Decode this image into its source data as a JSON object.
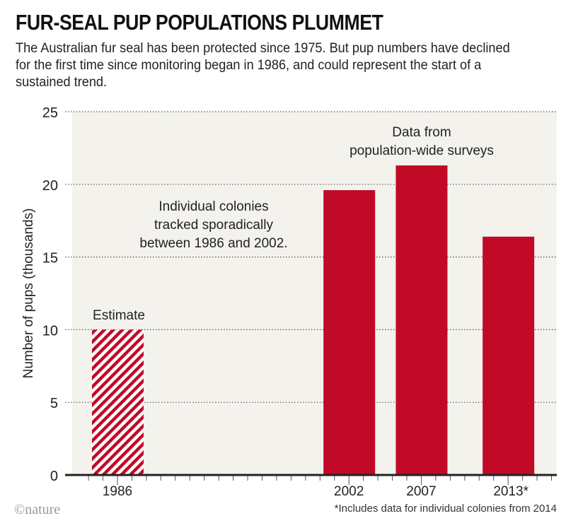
{
  "chart_data": {
    "type": "bar",
    "title": "FUR-SEAL PUP POPULATIONS PLUMMET",
    "subtitle": "The Australian fur seal has been protected since 1975. But pup numbers have declined for the first time since monitoring began in 1986, and could represent the start of a sustained trend.",
    "ylabel": "Number of pups (thousands)",
    "xlabel": "",
    "ylim": [
      0,
      25
    ],
    "yticks": [
      0,
      5,
      10,
      15,
      20,
      25
    ],
    "grid": true,
    "categories": [
      "1986",
      "2002",
      "2007",
      "2013*"
    ],
    "years": [
      1986,
      2002,
      2007,
      2013
    ],
    "values": [
      10,
      19.6,
      21.3,
      16.4
    ],
    "estimated": [
      true,
      false,
      false,
      false
    ],
    "annotations": {
      "estimate": "Estimate",
      "colonies": [
        "Individual colonies",
        "tracked sporadically",
        "between 1986 and 2002."
      ],
      "surveys": [
        "Data from",
        "population-wide surveys"
      ]
    },
    "footnote": "*Includes data for individual colonies from 2014",
    "colors": {
      "bar": "#c10a27",
      "background": "#f4f2ec"
    }
  },
  "credit": "©nature"
}
